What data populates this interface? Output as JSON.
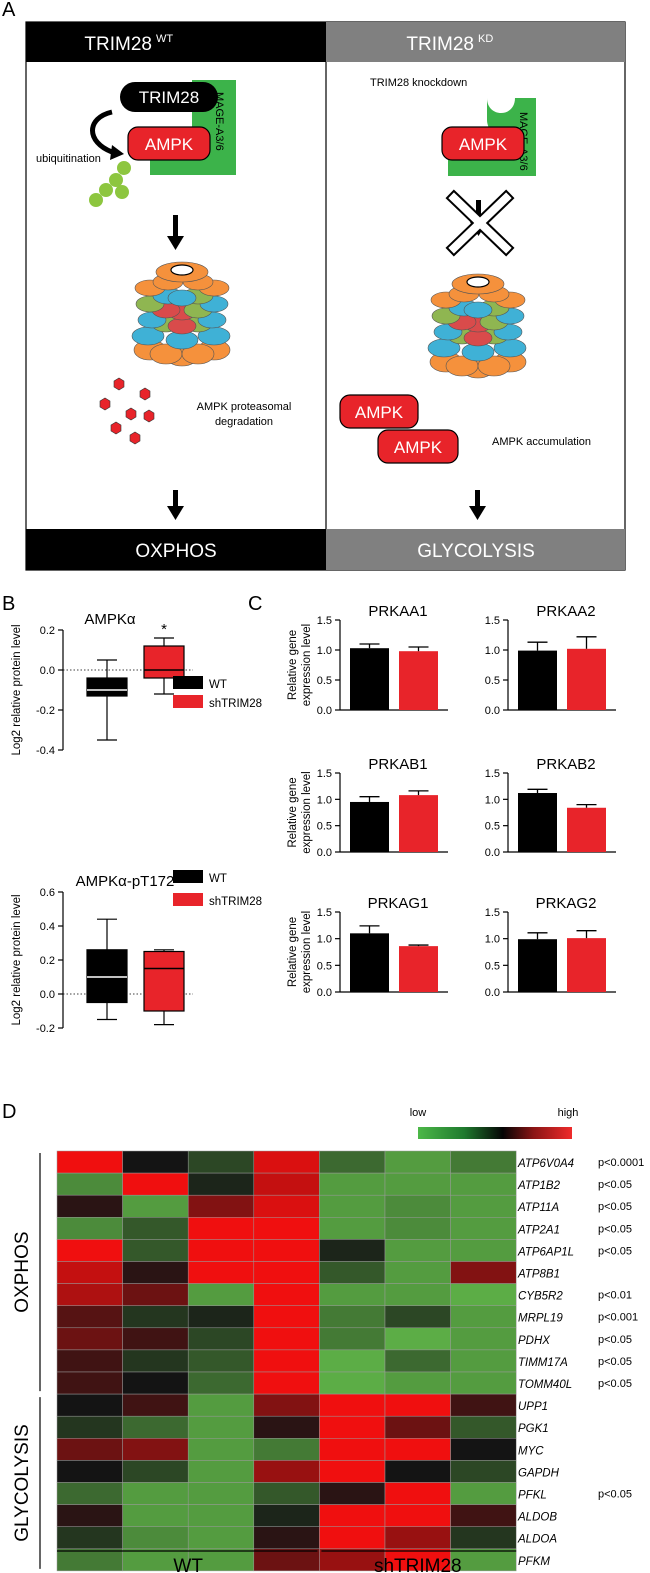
{
  "panel_a": {
    "letter": "A",
    "left": {
      "header_main": "TRIM28",
      "header_sup": "WT",
      "trim28_label": "TRIM28",
      "ampk_label": "AMPK",
      "mage_label": "MAGE-A3/6",
      "ubiquitination_label": "ubiquitination",
      "degradation_line1": "AMPK proteasomal",
      "degradation_line2": "degradation",
      "footer": "OXPHOS"
    },
    "right": {
      "header_main": "TRIM28",
      "header_sup": "KD",
      "knockdown_label": "TRIM28 knockdown",
      "ampk_label": "AMPK",
      "mage_label": "MAGE-A3/6",
      "ampk_free_1": "AMPK",
      "ampk_free_2": "AMPK",
      "accumulation_label": "AMPK accumulation",
      "footer": "GLYCOLYSIS"
    },
    "colors": {
      "black_bar": "#000000",
      "grey_bar": "#808080",
      "ampk_red": "#e8242a",
      "mage_green": "#3cb34a",
      "ubiquitin_green": "#8dc63f"
    }
  },
  "panel_b": {
    "letter": "B"
  },
  "panel_c": {
    "letter": "C"
  },
  "panel_d": {
    "letter": "D"
  },
  "chart_data": [
    {
      "type": "box",
      "panel": "B",
      "title": "AMPKα",
      "ylabel": "Log2 relative protein level",
      "ylim": [
        -0.4,
        0.2
      ],
      "yticks": [
        "0.2",
        "0.0",
        "-0.2",
        "-0.4"
      ],
      "star": "*",
      "legend": [
        {
          "name": "WT",
          "color": "#000000"
        },
        {
          "name": "shTRIM28",
          "color": "#e8242a"
        }
      ],
      "series": [
        {
          "name": "WT",
          "color": "#000000",
          "min": -0.35,
          "q1": -0.13,
          "median": -0.1,
          "q3": -0.04,
          "max": 0.05
        },
        {
          "name": "shTRIM28",
          "color": "#e8242a",
          "min": -0.12,
          "q1": -0.04,
          "median": 0.0,
          "q3": 0.12,
          "max": 0.16
        }
      ]
    },
    {
      "type": "box",
      "panel": "B",
      "title": "AMPKα-pT172",
      "ylabel": "Log2 relative protein level",
      "ylim": [
        -0.2,
        0.6
      ],
      "yticks": [
        "0.6",
        "0.4",
        "0.2",
        "0.0",
        "-0.2"
      ],
      "legend": [
        {
          "name": "WT",
          "color": "#000000"
        },
        {
          "name": "shTRIM28",
          "color": "#e8242a"
        }
      ],
      "series": [
        {
          "name": "WT",
          "color": "#000000",
          "min": -0.15,
          "q1": -0.05,
          "median": 0.1,
          "q3": 0.26,
          "max": 0.44
        },
        {
          "name": "shTRIM28",
          "color": "#e8242a",
          "min": -0.18,
          "q1": -0.1,
          "median": 0.15,
          "q3": 0.25,
          "max": 0.26
        }
      ]
    },
    {
      "type": "bar",
      "panel": "C",
      "title": "PRKAA1",
      "ylabel": "Relative gene expression level",
      "ylim": [
        0,
        1.5
      ],
      "yticks": [
        "0.0",
        "0.5",
        "1.0",
        "1.5"
      ],
      "values": [
        1.03,
        0.98
      ],
      "errors": [
        0.07,
        0.07
      ],
      "colors": [
        "#000000",
        "#e8242a"
      ]
    },
    {
      "type": "bar",
      "panel": "C",
      "title": "PRKAA2",
      "ylabel": "",
      "ylim": [
        0,
        1.5
      ],
      "yticks": [
        "0.0",
        "0.5",
        "1.0",
        "1.5"
      ],
      "values": [
        0.99,
        1.02
      ],
      "errors": [
        0.14,
        0.2
      ],
      "colors": [
        "#000000",
        "#e8242a"
      ]
    },
    {
      "type": "bar",
      "panel": "C",
      "title": "PRKAB1",
      "ylabel": "Relative gene expression level",
      "ylim": [
        0,
        1.5
      ],
      "yticks": [
        "0.0",
        "0.5",
        "1.0",
        "1.5"
      ],
      "values": [
        0.95,
        1.08
      ],
      "errors": [
        0.1,
        0.08
      ],
      "colors": [
        "#000000",
        "#e8242a"
      ]
    },
    {
      "type": "bar",
      "panel": "C",
      "title": "PRKAB2",
      "ylabel": "",
      "ylim": [
        0,
        1.5
      ],
      "yticks": [
        "0.0",
        "0.5",
        "1.0",
        "1.5"
      ],
      "values": [
        1.12,
        0.84
      ],
      "errors": [
        0.07,
        0.06
      ],
      "colors": [
        "#000000",
        "#e8242a"
      ]
    },
    {
      "type": "bar",
      "panel": "C",
      "title": "PRKAG1",
      "ylabel": "Relative gene expression level",
      "ylim": [
        0,
        1.5
      ],
      "yticks": [
        "0.0",
        "0.5",
        "1.0",
        "1.5"
      ],
      "values": [
        1.1,
        0.86
      ],
      "errors": [
        0.14,
        0.02
      ],
      "colors": [
        "#000000",
        "#e8242a"
      ]
    },
    {
      "type": "bar",
      "panel": "C",
      "title": "PRKAG2",
      "ylabel": "",
      "ylim": [
        0,
        1.5
      ],
      "yticks": [
        "0.0",
        "0.5",
        "1.0",
        "1.5"
      ],
      "values": [
        0.99,
        1.01
      ],
      "errors": [
        0.12,
        0.14
      ],
      "colors": [
        "#000000",
        "#e8242a"
      ]
    },
    {
      "type": "heatmap",
      "panel": "D",
      "scale_low": "low",
      "scale_high": "high",
      "groups": [
        "WT",
        "shTRIM28"
      ],
      "row_groups": [
        {
          "name": "OXPHOS",
          "rows": 11
        },
        {
          "name": "GLYCOLYSIS",
          "rows": 8
        }
      ],
      "genes": [
        "ATP6V0A4",
        "ATP1B2",
        "ATP11A",
        "ATP2A1",
        "ATP6AP1L",
        "ATP8B1",
        "CYB5R2",
        "MRPL19",
        "PDHX",
        "TIMM17A",
        "TOMM40L",
        "UPP1",
        "PGK1",
        "MYC",
        "GAPDH",
        "PFKL",
        "ALDOB",
        "ALDOA",
        "PFKM"
      ],
      "pvalues": [
        "p<0.0001",
        "p<0.05",
        "p<0.05",
        "p<0.05",
        "p<0.05",
        "",
        "p<0.01",
        "p<0.001",
        "p<0.05",
        "p<0.05",
        "p<0.05",
        "",
        "",
        "",
        "",
        "p<0.05",
        "",
        "",
        ""
      ],
      "values": [
        [
          1.0,
          0.0,
          -0.3,
          0.9,
          -0.5,
          -0.8,
          -0.6
        ],
        [
          -0.7,
          1.0,
          -0.1,
          0.8,
          -0.8,
          -0.8,
          -0.8
        ],
        [
          0.1,
          -0.8,
          0.5,
          0.9,
          -0.8,
          -0.7,
          -0.8
        ],
        [
          -0.7,
          -0.4,
          1.0,
          1.0,
          -0.8,
          -0.7,
          -0.8
        ],
        [
          1.0,
          -0.4,
          1.0,
          1.0,
          -0.1,
          -0.8,
          -0.8
        ],
        [
          0.8,
          0.1,
          1.0,
          1.0,
          -0.4,
          -0.8,
          0.5
        ],
        [
          0.7,
          0.4,
          -0.8,
          1.0,
          -0.8,
          -0.8,
          -0.9
        ],
        [
          0.3,
          -0.2,
          -0.1,
          1.0,
          -0.6,
          -0.3,
          -0.8
        ],
        [
          0.4,
          0.2,
          -0.3,
          1.0,
          -0.6,
          -0.9,
          -0.8
        ],
        [
          0.2,
          -0.2,
          -0.4,
          1.0,
          -0.9,
          -0.5,
          -0.8
        ],
        [
          0.2,
          0.0,
          -0.5,
          1.0,
          -0.9,
          -0.8,
          -0.8
        ],
        [
          0.0,
          0.2,
          -0.8,
          0.5,
          1.0,
          1.0,
          0.2
        ],
        [
          -0.2,
          -0.5,
          -0.8,
          0.1,
          1.0,
          0.4,
          -0.4
        ],
        [
          0.4,
          0.5,
          -0.8,
          -0.6,
          1.0,
          1.0,
          0.0
        ],
        [
          0.0,
          -0.3,
          -0.8,
          0.6,
          1.0,
          0.0,
          -0.3
        ],
        [
          -0.5,
          -0.8,
          -0.8,
          -0.4,
          0.1,
          1.0,
          -0.8
        ],
        [
          0.1,
          -0.8,
          -0.8,
          -0.1,
          1.0,
          1.0,
          0.2
        ],
        [
          -0.2,
          -0.7,
          -0.8,
          0.1,
          1.0,
          0.6,
          -0.2
        ],
        [
          -0.6,
          -0.8,
          -0.8,
          0.4,
          0.6,
          1.0,
          -0.8
        ]
      ]
    }
  ]
}
